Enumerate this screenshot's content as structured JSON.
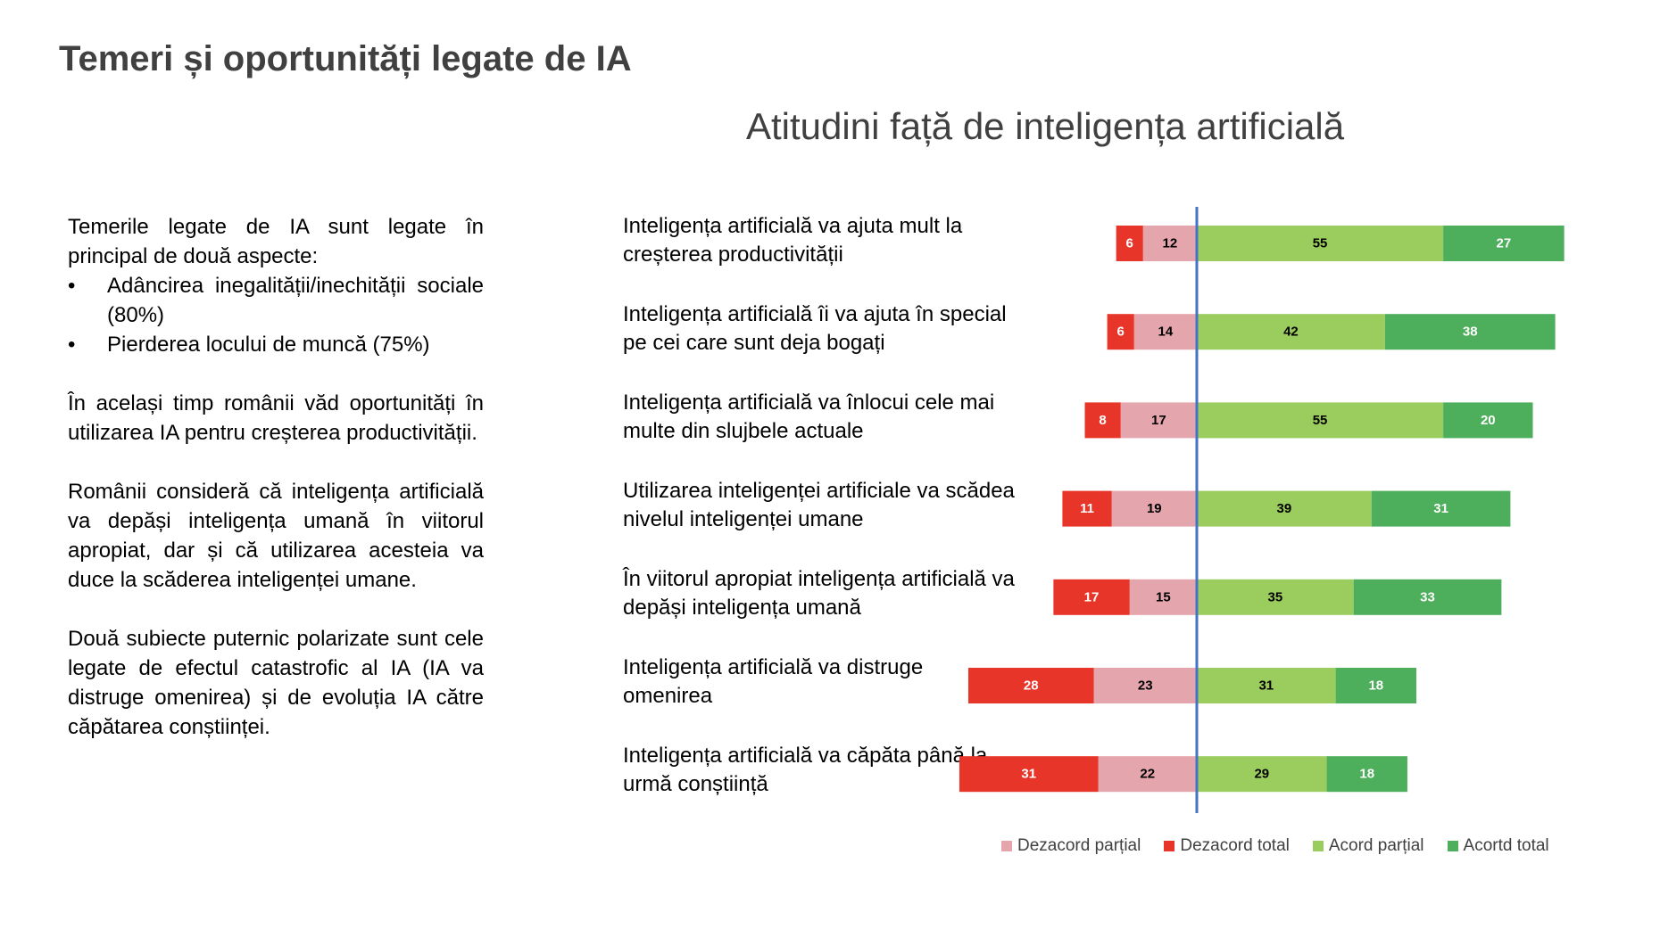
{
  "slide_title": "Temeri și oportunități legate de IA",
  "text": {
    "p1": "Temerile legate de IA sunt legate în principal de două aspecte:",
    "bullets": [
      "Adâncirea inegalității/inechității sociale (80%)",
      "Pierderea locului de muncă (75%)"
    ],
    "bullet_symbol": "•",
    "p2": "În același timp românii văd oportunități în utilizarea IA pentru creșterea productivității.",
    "p3": "Românii consideră că inteligența artificială va depăși inteligența umană în viitorul apropiat, dar și că utilizarea acesteia va duce la scăderea inteligenței umane.",
    "p4": "Două subiecte puternic polarizate sunt cele legate de efectul catastrofic al IA (IA va distruge omenirea) și de evoluția IA către căpătarea conștiinței."
  },
  "chart_data": {
    "type": "bar",
    "orientation": "horizontal-diverging",
    "title": "Atitudini față de inteligența artificială",
    "categories": [
      "Inteligența artificială va ajuta mult la creșterea productivității",
      "Inteligența artificială îi va ajuta în special pe cei care sunt deja bogați",
      "Inteligența artificială va înlocui cele mai multe din slujbele actuale",
      "Utilizarea inteligenței artificiale va scădea nivelul inteligenței umane",
      "În viitorul apropiat inteligența artificială va depăși inteligența umană",
      "Inteligența artificială va distruge omenirea",
      "Inteligența artificială va căpăta până la urmă conștiință"
    ],
    "series": [
      {
        "name": "Dezacord parțial",
        "color": "#E4A5AC",
        "side": "negative",
        "values": [
          12,
          14,
          17,
          19,
          15,
          23,
          22
        ]
      },
      {
        "name": "Dezacord total",
        "color": "#E8352A",
        "side": "negative",
        "values": [
          6,
          6,
          8,
          11,
          17,
          28,
          31
        ]
      },
      {
        "name": "Acord parțial",
        "color": "#9ACD5E",
        "side": "positive",
        "values": [
          55,
          42,
          55,
          39,
          35,
          31,
          29
        ]
      },
      {
        "name": "Acortd total",
        "color": "#4DAE5B",
        "side": "positive",
        "values": [
          27,
          38,
          20,
          31,
          33,
          18,
          18
        ]
      }
    ],
    "label_colors": {
      "Dezacord parțial": "#000000",
      "Dezacord total": "#ffffff",
      "Acord parțial": "#000000",
      "Acortd total": "#ffffff"
    },
    "axis_color": "#4472C4",
    "legend_position": "bottom"
  }
}
